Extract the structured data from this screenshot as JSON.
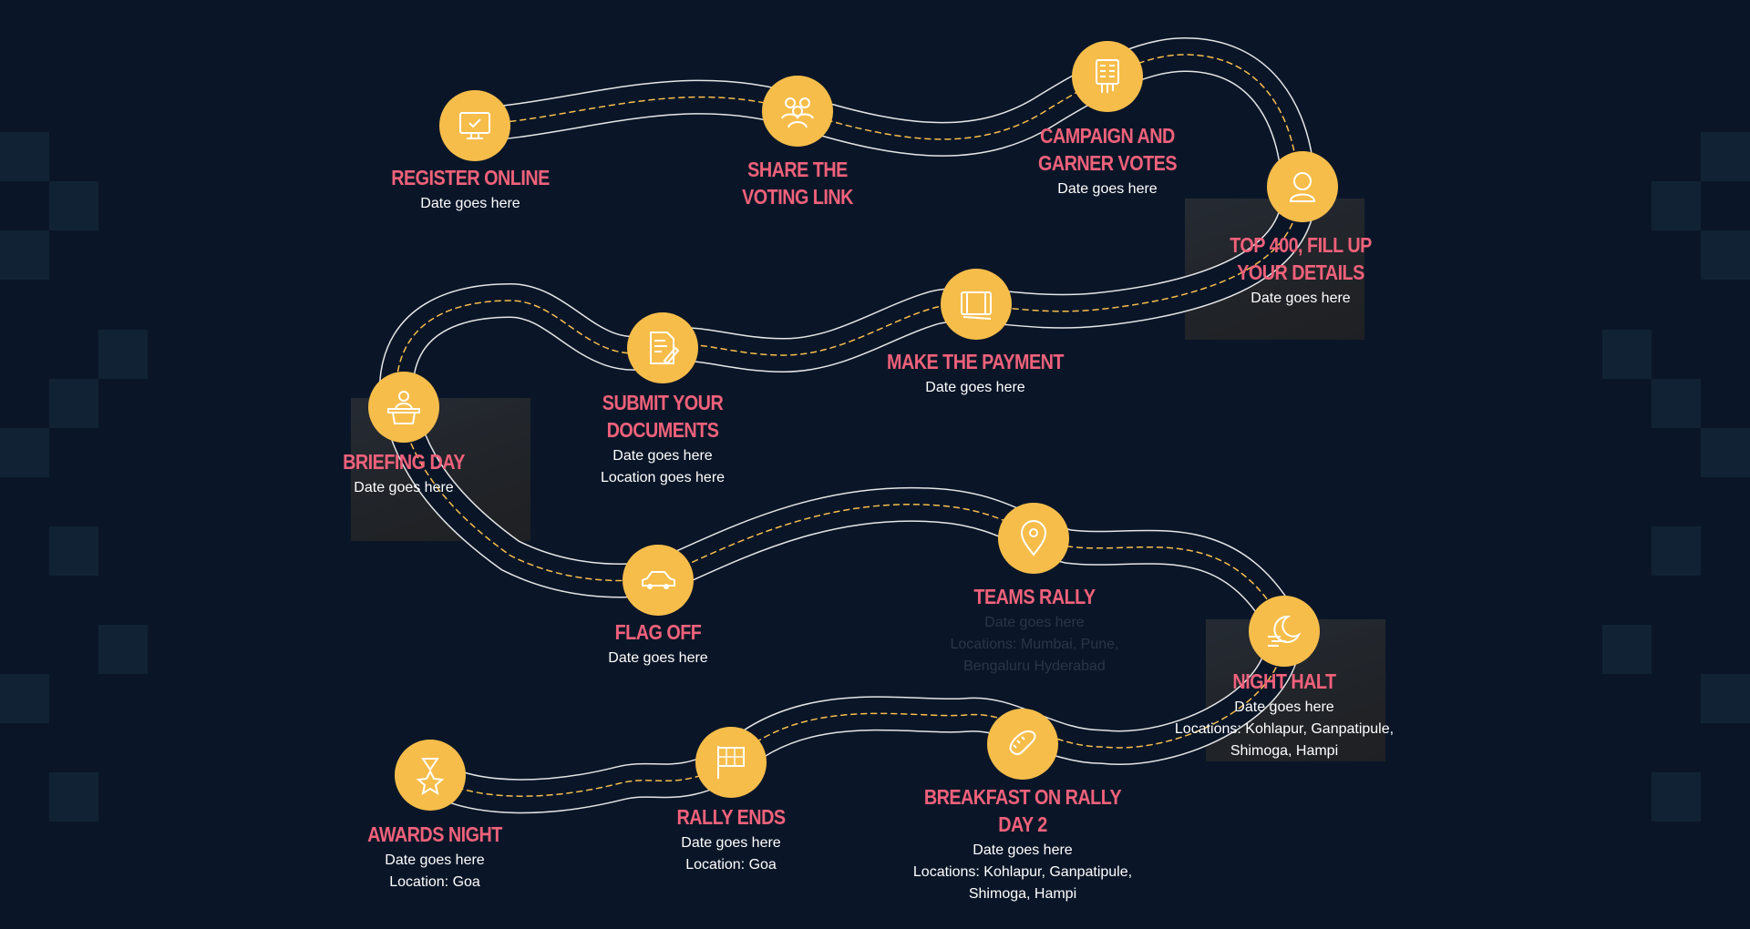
{
  "colors": {
    "background": "#0a1628",
    "node": "#f7bd4a",
    "title": "#f0617a",
    "text": "#ffffff",
    "road_edge": "#e6e6e6",
    "road_center": "#f7bd4a"
  },
  "milestones": [
    {
      "id": "register-online",
      "icon": "monitor-check-icon",
      "title": "REGISTER ONLINE",
      "lines": [
        "Date goes here"
      ]
    },
    {
      "id": "share-voting-link",
      "icon": "people-icon",
      "title": "SHARE THE\nVOTING LINK",
      "lines": []
    },
    {
      "id": "campaign-garner-votes",
      "icon": "ballot-hand-icon",
      "title": "CAMPAIGN AND\nGARNER VOTES",
      "lines": [
        "Date goes here"
      ]
    },
    {
      "id": "top-400",
      "icon": "user-icon",
      "title": "TOP 400, FILL UP\nYOUR DETAILS",
      "lines": [
        "Date goes here"
      ]
    },
    {
      "id": "make-payment",
      "icon": "card-icon",
      "title": "MAKE THE PAYMENT",
      "lines": [
        "Date goes here"
      ]
    },
    {
      "id": "submit-documents",
      "icon": "document-pen-icon",
      "title": "SUBMIT YOUR DOCUMENTS",
      "lines": [
        "Date goes here",
        "Location goes here"
      ]
    },
    {
      "id": "briefing-day",
      "icon": "podium-icon",
      "title": "BRIEFING DAY",
      "lines": [
        "Date goes here"
      ]
    },
    {
      "id": "flag-off",
      "icon": "car-icon",
      "title": "FLAG OFF",
      "lines": [
        "Date goes here"
      ]
    },
    {
      "id": "teams-rally",
      "icon": "location-pin-icon",
      "title": "TEAMS RALLY",
      "lines": [
        "Date goes here",
        "Locations: Mumbai, Pune,",
        "Bengaluru Hyderabad"
      ],
      "dim_lines": true
    },
    {
      "id": "night-halt",
      "icon": "moon-wind-icon",
      "title": "NIGHT HALT",
      "lines": [
        "Date  goes here",
        "Locations: Kohlapur, Ganpatipule,",
        "Shimoga, Hampi"
      ]
    },
    {
      "id": "breakfast-day-2",
      "icon": "bread-icon",
      "title": "BREAKFAST ON RALLY DAY 2",
      "lines": [
        "Date  goes here",
        "Locations: Kohlapur, Ganpatipule,",
        "Shimoga, Hampi"
      ]
    },
    {
      "id": "rally-ends",
      "icon": "checkered-flag-icon",
      "title": "RALLY ENDS",
      "lines": [
        "Date goes here",
        "Location: Goa"
      ]
    },
    {
      "id": "awards-night",
      "icon": "medal-icon",
      "title": "AWARDS NIGHT",
      "lines": [
        "Date goes here",
        "Location: Goa"
      ]
    }
  ]
}
